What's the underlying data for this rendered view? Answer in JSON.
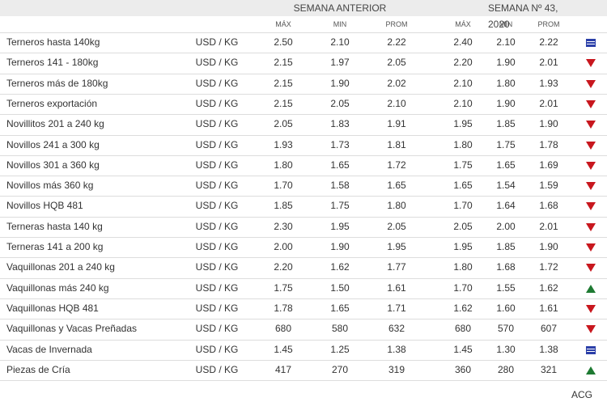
{
  "header": {
    "groups": [
      "SEMANA ANTERIOR",
      "SEMANA Nº 43, 2020"
    ],
    "columns": [
      "MÁX",
      "MIN",
      "PROM",
      "MÁX",
      "MIN",
      "PROM"
    ]
  },
  "table": {
    "rows": [
      [
        "Terneros hasta 140kg",
        "USD / KG",
        "2.50",
        "2.10",
        "2.22",
        "2.40",
        "2.10",
        "2.22"
      ],
      [
        "Terneros 141 - 180kg",
        "USD / KG",
        "2.15",
        "1.97",
        "2.05",
        "2.20",
        "1.90",
        "2.01"
      ],
      [
        "Terneros más de 180kg",
        "USD / KG",
        "2.15",
        "1.90",
        "2.02",
        "2.10",
        "1.80",
        "1.93"
      ],
      [
        "Terneros exportación",
        "USD / KG",
        "2.15",
        "2.05",
        "2.10",
        "2.10",
        "1.90",
        "2.01"
      ],
      [
        "Novillitos 201 a 240 kg",
        "USD / KG",
        "2.05",
        "1.83",
        "1.91",
        "1.95",
        "1.85",
        "1.90"
      ],
      [
        "Novillos 241 a 300 kg",
        "USD / KG",
        "1.93",
        "1.73",
        "1.81",
        "1.80",
        "1.75",
        "1.78"
      ],
      [
        "Novillos 301 a 360 kg",
        "USD / KG",
        "1.80",
        "1.65",
        "1.72",
        "1.75",
        "1.65",
        "1.69"
      ],
      [
        "Novillos más 360 kg",
        "USD / KG",
        "1.70",
        "1.58",
        "1.65",
        "1.65",
        "1.54",
        "1.59"
      ],
      [
        "Novillos HQB 481",
        "USD / KG",
        "1.85",
        "1.75",
        "1.80",
        "1.70",
        "1.64",
        "1.68"
      ],
      [
        "Terneras hasta 140 kg",
        "USD / KG",
        "2.30",
        "1.95",
        "2.05",
        "2.05",
        "2.00",
        "2.01"
      ],
      [
        "Terneras 141 a 200 kg",
        "USD / KG",
        "2.00",
        "1.90",
        "1.95",
        "1.95",
        "1.85",
        "1.90"
      ],
      [
        "Vaquillonas 201 a 240 kg",
        "USD / KG",
        "2.20",
        "1.62",
        "1.77",
        "1.80",
        "1.68",
        "1.72"
      ],
      [
        "Vaquillonas más 240 kg",
        "USD / KG",
        "1.75",
        "1.50",
        "1.61",
        "1.70",
        "1.55",
        "1.62"
      ],
      [
        "Vaquillonas HQB 481",
        "USD / KG",
        "1.78",
        "1.65",
        "1.71",
        "1.62",
        "1.60",
        "1.61"
      ],
      [
        "Vaquillonas y Vacas Preñadas",
        "USD / KG",
        "680",
        "580",
        "632",
        "680",
        "570",
        "607"
      ],
      [
        "Vacas de Invernada",
        "USD / KG",
        "1.45",
        "1.25",
        "1.38",
        "1.45",
        "1.30",
        "1.38"
      ],
      [
        "Piezas de Cría",
        "USD / KG",
        "417",
        "270",
        "319",
        "360",
        "280",
        "321"
      ]
    ]
  },
  "footer": "ACG"
}
